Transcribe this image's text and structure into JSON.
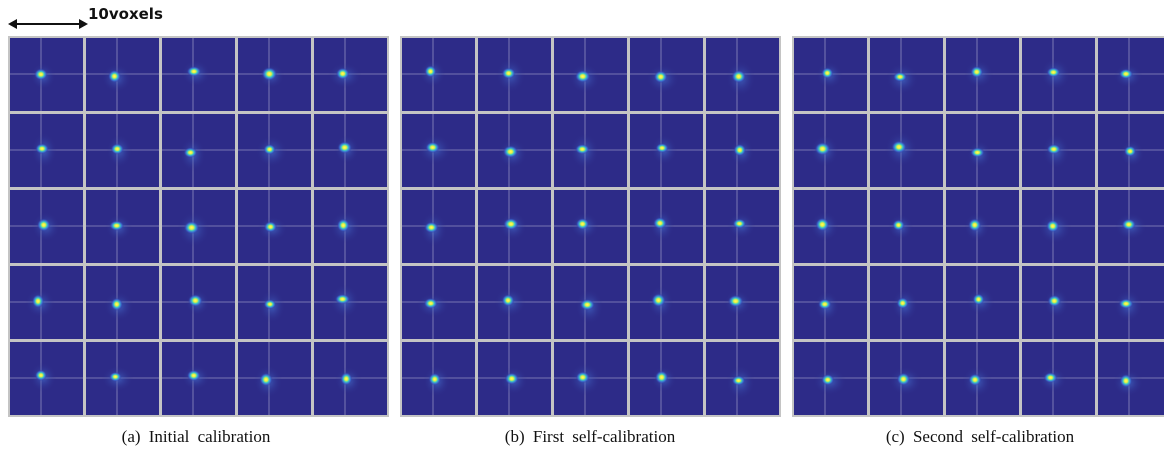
{
  "scale_label": "10voxels",
  "captions": [
    "(a) Initial calibration",
    "(b) First self-calibration",
    "(c) Second self-calibration"
  ]
}
